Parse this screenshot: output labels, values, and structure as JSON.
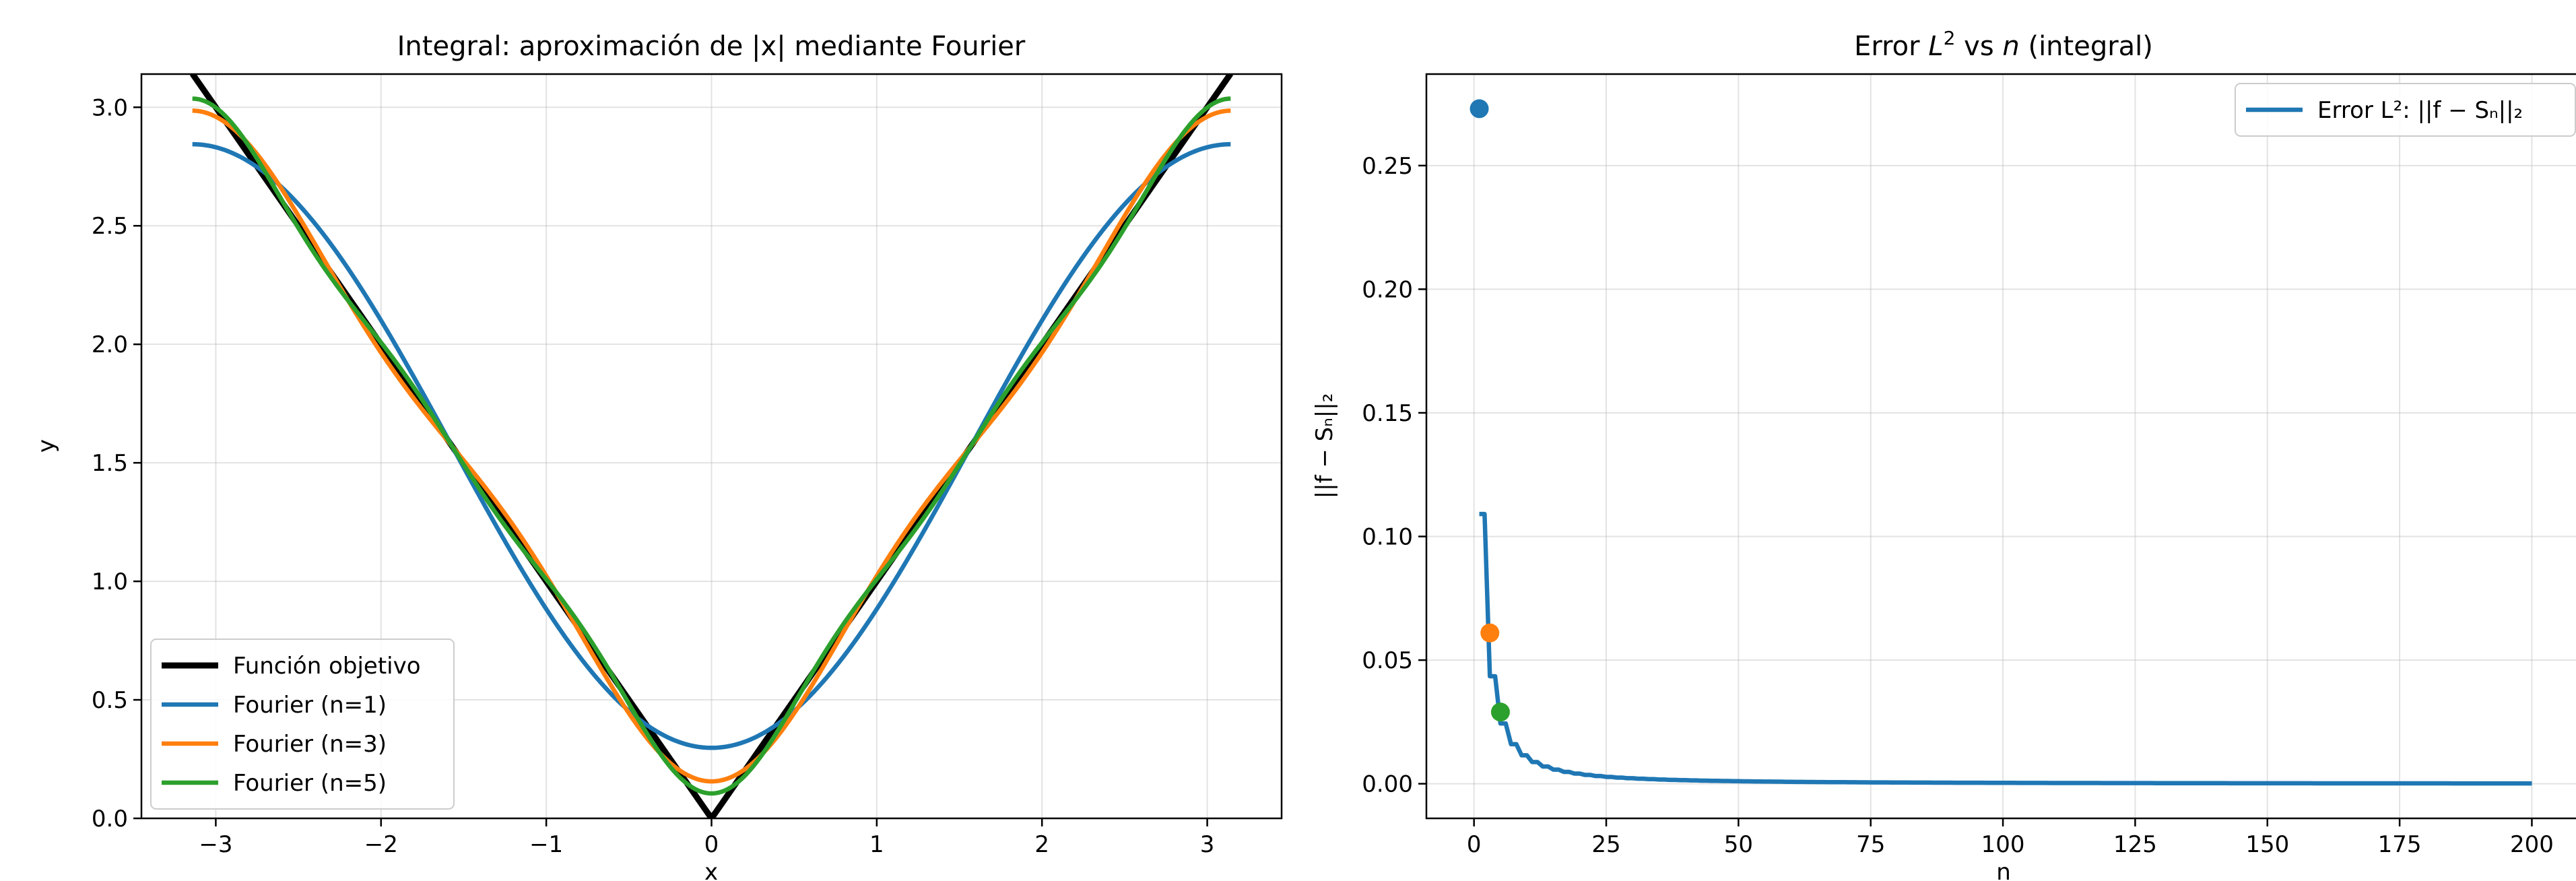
{
  "chart_data": [
    {
      "type": "line",
      "title": "Integral: aproximación de |x| mediante Fourier",
      "xlabel": "x",
      "ylabel": "y",
      "xlim": [
        -3.45,
        3.45
      ],
      "ylim": [
        0,
        3.14
      ],
      "x_ticks": [
        -3,
        -2,
        -1,
        0,
        1,
        2,
        3
      ],
      "x_tick_labels": [
        "−3",
        "−2",
        "−1",
        "0",
        "1",
        "2",
        "3"
      ],
      "y_ticks": [
        0.0,
        0.5,
        1.0,
        1.5,
        2.0,
        2.5,
        3.0
      ],
      "y_tick_labels": [
        "0.0",
        "0.5",
        "1.0",
        "1.5",
        "2.0",
        "2.5",
        "3.0"
      ],
      "grid": true,
      "legend_position": "lower-left",
      "series": [
        {
          "name": "Función objetivo",
          "kind": "target",
          "color": "#000000"
        },
        {
          "name": "Fourier (n=1)",
          "kind": "fourier",
          "n": 1,
          "color": "#1f77b4"
        },
        {
          "name": "Fourier (n=3)",
          "kind": "fourier",
          "n": 3,
          "color": "#ff7f0e"
        },
        {
          "name": "Fourier (n=5)",
          "kind": "fourier",
          "n": 5,
          "color": "#2ca02c"
        }
      ]
    },
    {
      "type": "line",
      "title_parts": {
        "prefix": "Error ",
        "L": "L",
        "sup": "2",
        "mid": " vs ",
        "n": "n",
        "suffix": " (integral)"
      },
      "xlabel": "n",
      "ylabel": "||f − Sₙ||₂",
      "xlim": [
        -9,
        210
      ],
      "ylim": [
        -0.014,
        0.287
      ],
      "x_ticks": [
        0,
        25,
        50,
        75,
        100,
        125,
        150,
        175,
        200
      ],
      "x_tick_labels": [
        "0",
        "25",
        "50",
        "75",
        "100",
        "125",
        "150",
        "175",
        "200"
      ],
      "y_ticks": [
        0.0,
        0.05,
        0.1,
        0.15,
        0.2,
        0.25
      ],
      "y_tick_labels": [
        "0.00",
        "0.05",
        "0.10",
        "0.15",
        "0.20",
        "0.25"
      ],
      "grid": true,
      "legend_position": "upper-right",
      "series": [
        {
          "name": "Error L²: ||f − Sₙ||₂",
          "color": "#1f77b4",
          "n_range": [
            1,
            200
          ]
        }
      ],
      "highlight_points": [
        {
          "n": 1,
          "value": 0.273,
          "color": "#1f77b4"
        },
        {
          "n": 3,
          "value": 0.061,
          "color": "#ff7f0e"
        },
        {
          "n": 5,
          "value": 0.029,
          "color": "#2ca02c"
        }
      ]
    }
  ]
}
